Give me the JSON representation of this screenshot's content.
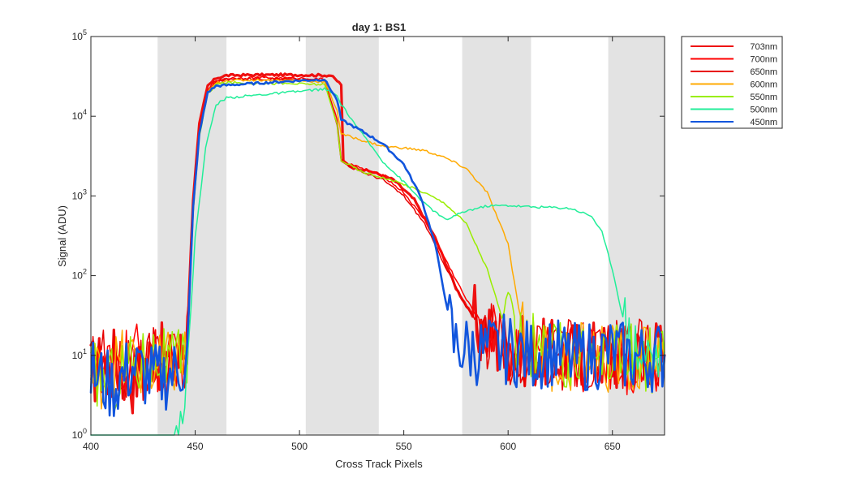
{
  "chart_data": {
    "type": "line",
    "title": "day 1: BS1",
    "xlabel": "Cross Track Pixels",
    "ylabel": "Signal (ADU)",
    "xlim": [
      400,
      675
    ],
    "ylim": [
      1,
      100000
    ],
    "yscale": "log",
    "grid": false,
    "legend_placement": "outside-top-right",
    "x_ticks": [
      400,
      450,
      500,
      550,
      600,
      650
    ],
    "y_ticks": [
      {
        "value": 1,
        "base": "10",
        "exp": "0"
      },
      {
        "value": 10,
        "base": "10",
        "exp": "1"
      },
      {
        "value": 100,
        "base": "10",
        "exp": "2"
      },
      {
        "value": 1000,
        "base": "10",
        "exp": "3"
      },
      {
        "value": 10000,
        "base": "10",
        "exp": "4"
      },
      {
        "value": 100000,
        "base": "10",
        "exp": "5"
      }
    ],
    "shaded_bands": [
      [
        432,
        465
      ],
      [
        503,
        538
      ],
      [
        578,
        611
      ],
      [
        648,
        675
      ]
    ],
    "band_color": "#e3e3e3",
    "series": [
      {
        "name": "703nm",
        "color": "#ee1111",
        "width": 3.2,
        "points": [
          [
            400,
            6
          ],
          [
            410,
            9
          ],
          [
            420,
            5
          ],
          [
            430,
            11
          ],
          [
            440,
            7
          ],
          [
            446,
            14
          ],
          [
            449,
            900
          ],
          [
            452,
            8000
          ],
          [
            456,
            24000
          ],
          [
            460,
            30000
          ],
          [
            465,
            32500
          ],
          [
            480,
            33000
          ],
          [
            500,
            33000
          ],
          [
            515,
            32500
          ],
          [
            520,
            25000
          ],
          [
            521,
            2700
          ],
          [
            525,
            2300
          ],
          [
            535,
            2000
          ],
          [
            545,
            1600
          ],
          [
            555,
            900
          ],
          [
            565,
            300
          ],
          [
            575,
            70
          ],
          [
            585,
            25
          ],
          [
            595,
            14
          ],
          [
            610,
            11
          ],
          [
            625,
            10
          ],
          [
            640,
            11
          ],
          [
            655,
            9
          ],
          [
            670,
            12
          ],
          [
            675,
            10
          ]
        ]
      },
      {
        "name": "700nm",
        "color": "#ff0000",
        "width": 1.5,
        "points": [
          [
            400,
            8
          ],
          [
            410,
            6
          ],
          [
            420,
            10
          ],
          [
            430,
            8
          ],
          [
            440,
            7
          ],
          [
            446,
            12
          ],
          [
            449,
            900
          ],
          [
            452,
            7000
          ],
          [
            456,
            22000
          ],
          [
            460,
            28000
          ],
          [
            465,
            30000
          ],
          [
            480,
            30500
          ],
          [
            500,
            30000
          ],
          [
            512,
            29000
          ],
          [
            518,
            9000
          ],
          [
            520,
            2800
          ],
          [
            530,
            2200
          ],
          [
            540,
            1800
          ],
          [
            550,
            1100
          ],
          [
            560,
            500
          ],
          [
            570,
            160
          ],
          [
            580,
            50
          ],
          [
            590,
            20
          ],
          [
            600,
            12
          ],
          [
            615,
            10
          ],
          [
            630,
            9
          ],
          [
            645,
            11
          ],
          [
            660,
            8
          ],
          [
            675,
            10
          ]
        ]
      },
      {
        "name": "650nm",
        "color": "#e80000",
        "width": 1.5,
        "points": [
          [
            400,
            7
          ],
          [
            410,
            8
          ],
          [
            420,
            6
          ],
          [
            430,
            9
          ],
          [
            440,
            8
          ],
          [
            446,
            11
          ],
          [
            449,
            800
          ],
          [
            452,
            6500
          ],
          [
            456,
            21000
          ],
          [
            460,
            27000
          ],
          [
            465,
            29000
          ],
          [
            480,
            29500
          ],
          [
            500,
            29000
          ],
          [
            512,
            28000
          ],
          [
            518,
            8000
          ],
          [
            520,
            2700
          ],
          [
            530,
            2000
          ],
          [
            540,
            1600
          ],
          [
            550,
            1000
          ],
          [
            560,
            450
          ],
          [
            570,
            130
          ],
          [
            580,
            40
          ],
          [
            590,
            18
          ],
          [
            600,
            11
          ],
          [
            615,
            9
          ],
          [
            630,
            10
          ],
          [
            645,
            9
          ],
          [
            660,
            11
          ],
          [
            675,
            9
          ]
        ]
      },
      {
        "name": "600nm",
        "color": "#ffaa00",
        "width": 1.5,
        "points": [
          [
            400,
            5
          ],
          [
            410,
            7
          ],
          [
            420,
            9
          ],
          [
            430,
            6
          ],
          [
            440,
            8
          ],
          [
            446,
            10
          ],
          [
            449,
            700
          ],
          [
            452,
            6000
          ],
          [
            456,
            20000
          ],
          [
            460,
            26000
          ],
          [
            465,
            28000
          ],
          [
            480,
            28500
          ],
          [
            500,
            28000
          ],
          [
            512,
            27000
          ],
          [
            518,
            12000
          ],
          [
            520,
            6000
          ],
          [
            530,
            5000
          ],
          [
            540,
            4200
          ],
          [
            550,
            4000
          ],
          [
            560,
            3700
          ],
          [
            570,
            3000
          ],
          [
            580,
            2200
          ],
          [
            590,
            1100
          ],
          [
            600,
            250
          ],
          [
            605,
            40
          ],
          [
            610,
            12
          ],
          [
            625,
            9
          ],
          [
            640,
            10
          ],
          [
            655,
            8
          ],
          [
            675,
            9
          ]
        ]
      },
      {
        "name": "550nm",
        "color": "#99ee00",
        "width": 1.5,
        "points": [
          [
            400,
            6
          ],
          [
            410,
            5
          ],
          [
            420,
            8
          ],
          [
            430,
            10
          ],
          [
            440,
            7
          ],
          [
            446,
            9
          ],
          [
            449,
            600
          ],
          [
            452,
            5500
          ],
          [
            456,
            19000
          ],
          [
            460,
            25000
          ],
          [
            465,
            26500
          ],
          [
            480,
            26000
          ],
          [
            500,
            25500
          ],
          [
            512,
            25000
          ],
          [
            518,
            8000
          ],
          [
            520,
            2800
          ],
          [
            530,
            2000
          ],
          [
            540,
            1700
          ],
          [
            550,
            1400
          ],
          [
            560,
            1100
          ],
          [
            570,
            800
          ],
          [
            580,
            450
          ],
          [
            590,
            120
          ],
          [
            597,
            30
          ],
          [
            605,
            14
          ],
          [
            620,
            10
          ],
          [
            635,
            9
          ],
          [
            650,
            11
          ],
          [
            665,
            8
          ],
          [
            675,
            10
          ]
        ]
      },
      {
        "name": "500nm",
        "color": "#22ee99",
        "width": 1.5,
        "points": [
          [
            400,
            1
          ],
          [
            440,
            1
          ],
          [
            446,
            5
          ],
          [
            450,
            300
          ],
          [
            455,
            4000
          ],
          [
            460,
            14000
          ],
          [
            465,
            17000
          ],
          [
            480,
            18500
          ],
          [
            500,
            20500
          ],
          [
            512,
            22000
          ],
          [
            518,
            18000
          ],
          [
            520,
            14000
          ],
          [
            530,
            6000
          ],
          [
            540,
            2700
          ],
          [
            550,
            1500
          ],
          [
            560,
            800
          ],
          [
            570,
            500
          ],
          [
            580,
            650
          ],
          [
            590,
            750
          ],
          [
            600,
            760
          ],
          [
            610,
            730
          ],
          [
            620,
            720
          ],
          [
            630,
            700
          ],
          [
            640,
            560
          ],
          [
            645,
            350
          ],
          [
            650,
            120
          ],
          [
            655,
            30
          ],
          [
            660,
            13
          ],
          [
            670,
            10
          ],
          [
            675,
            11
          ]
        ]
      },
      {
        "name": "450nm",
        "color": "#1155dd",
        "width": 2.6,
        "points": [
          [
            400,
            6
          ],
          [
            410,
            4
          ],
          [
            420,
            7
          ],
          [
            430,
            5
          ],
          [
            440,
            6
          ],
          [
            446,
            9
          ],
          [
            449,
            700
          ],
          [
            452,
            6000
          ],
          [
            456,
            20000
          ],
          [
            460,
            24000
          ],
          [
            465,
            24500
          ],
          [
            480,
            26000
          ],
          [
            500,
            28000
          ],
          [
            512,
            29000
          ],
          [
            518,
            16000
          ],
          [
            520,
            9000
          ],
          [
            530,
            6500
          ],
          [
            540,
            4500
          ],
          [
            550,
            2500
          ],
          [
            558,
            1000
          ],
          [
            565,
            250
          ],
          [
            570,
            50
          ],
          [
            574,
            14
          ],
          [
            580,
            12
          ],
          [
            590,
            11
          ],
          [
            600,
            12
          ],
          [
            610,
            10
          ],
          [
            620,
            11
          ],
          [
            630,
            9
          ],
          [
            640,
            10
          ],
          [
            650,
            11
          ],
          [
            660,
            9
          ],
          [
            675,
            10
          ]
        ]
      }
    ]
  }
}
